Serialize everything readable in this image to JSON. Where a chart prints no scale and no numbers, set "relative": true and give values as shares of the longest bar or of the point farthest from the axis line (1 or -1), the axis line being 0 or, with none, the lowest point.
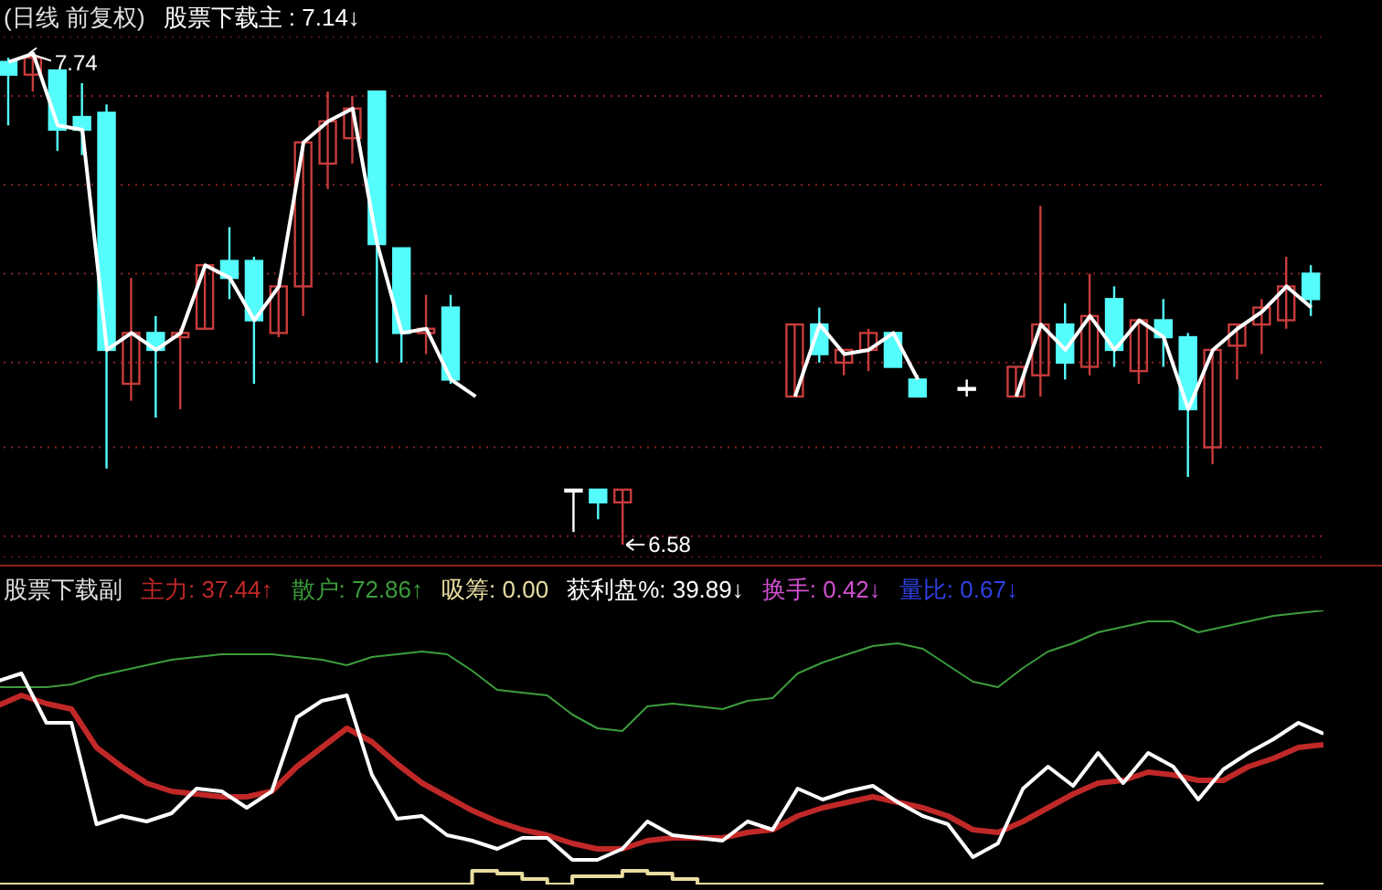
{
  "chart_data": [
    {
      "type": "candlestick",
      "title": "(日线 前复权)",
      "categories": [
        null,
        null,
        null,
        null,
        null,
        null,
        null,
        null,
        null,
        null,
        null,
        null,
        null,
        null,
        null,
        null,
        null,
        null,
        null,
        null,
        null,
        null,
        null,
        null,
        null,
        null,
        null,
        null,
        null,
        null,
        null,
        null,
        null,
        null,
        null,
        null,
        null,
        null,
        null,
        null,
        null,
        null,
        null,
        null,
        null,
        null,
        null,
        null,
        null,
        null,
        null,
        null,
        null,
        null
      ],
      "ohlc": [
        [
          7.72,
          7.73,
          7.57,
          7.69
        ],
        [
          7.69,
          7.74,
          7.65,
          7.73
        ],
        [
          7.7,
          7.7,
          7.51,
          7.56
        ],
        [
          7.59,
          7.67,
          7.5,
          7.56
        ],
        [
          7.6,
          7.62,
          6.76,
          7.04
        ],
        [
          6.96,
          7.21,
          6.92,
          7.08
        ],
        [
          7.08,
          7.12,
          6.88,
          7.04
        ],
        [
          7.07,
          7.09,
          6.9,
          7.08
        ],
        [
          7.09,
          7.24,
          7.09,
          7.24
        ],
        [
          7.25,
          7.33,
          7.16,
          7.21
        ],
        [
          7.25,
          7.26,
          6.96,
          7.11
        ],
        [
          7.08,
          7.21,
          7.07,
          7.19
        ],
        [
          7.19,
          7.53,
          7.12,
          7.53
        ],
        [
          7.48,
          7.65,
          7.42,
          7.58
        ],
        [
          7.54,
          7.64,
          7.48,
          7.61
        ],
        [
          7.65,
          7.65,
          7.01,
          7.29
        ],
        [
          7.28,
          7.28,
          7.01,
          7.08
        ],
        [
          7.08,
          7.17,
          7.03,
          7.09
        ],
        [
          7.14,
          7.17,
          6.96,
          6.97
        ],
        null,
        null,
        null,
        null,
        [
          6.71,
          6.71,
          6.61,
          6.71
        ],
        [
          6.71,
          6.71,
          6.64,
          6.68
        ],
        [
          6.68,
          6.71,
          6.58,
          6.71
        ],
        null,
        null,
        null,
        null,
        null,
        null,
        [
          6.93,
          7.1,
          6.93,
          7.1
        ],
        [
          7.1,
          7.14,
          7.01,
          7.03
        ],
        [
          7.01,
          7.04,
          6.98,
          7.04
        ],
        [
          7.04,
          7.09,
          6.99,
          7.08
        ],
        [
          7.08,
          7.08,
          7.0,
          7.0
        ],
        [
          6.97,
          6.98,
          6.93,
          6.93
        ],
        null,
        [
          6.95,
          6.97,
          6.93,
          6.95
        ],
        null,
        [
          6.93,
          7.0,
          6.93,
          7.0
        ],
        [
          6.98,
          7.38,
          6.93,
          7.1
        ],
        [
          7.1,
          7.15,
          6.97,
          7.01
        ],
        [
          7.0,
          7.22,
          6.98,
          7.12
        ],
        [
          7.16,
          7.19,
          7.0,
          7.04
        ],
        [
          6.99,
          7.11,
          6.96,
          7.11
        ],
        [
          7.11,
          7.16,
          7.0,
          7.07
        ],
        [
          7.07,
          7.08,
          6.74,
          6.9
        ],
        [
          6.81,
          7.04,
          6.77,
          7.04
        ],
        [
          7.05,
          7.1,
          6.97,
          7.1
        ],
        [
          7.1,
          7.16,
          7.03,
          7.14
        ],
        [
          7.11,
          7.26,
          7.09,
          7.19
        ],
        [
          7.22,
          7.24,
          7.12,
          7.16
        ]
      ],
      "colors": [
        "#54fcfc",
        "#c83c3c",
        "#54fcfc",
        "#54fcfc",
        "#54fcfc",
        "#c83c3c",
        "#54fcfc",
        "#c83c3c",
        "#c83c3c",
        "#54fcfc",
        "#54fcfc",
        "#c83c3c",
        "#c83c3c",
        "#c83c3c",
        "#c83c3c",
        "#54fcfc",
        "#54fcfc",
        "#c83c3c",
        "#54fcfc",
        null,
        null,
        null,
        null,
        "#ffffff",
        "#54fcfc",
        "#c83c3c",
        null,
        null,
        null,
        null,
        null,
        null,
        "#c83c3c",
        "#54fcfc",
        "#c83c3c",
        "#c83c3c",
        "#54fcfc",
        "#54fcfc",
        null,
        "#ffffff",
        null,
        "#c83c3c",
        "#c83c3c",
        "#54fcfc",
        "#c83c3c",
        "#54fcfc",
        "#c83c3c",
        "#54fcfc",
        "#54fcfc",
        "#c83c3c",
        "#c83c3c",
        "#c83c3c",
        "#c83c3c",
        "#54fcfc"
      ],
      "series": [
        {
          "type": "line",
          "name": "股票下载主 : 7.14↓",
          "color": "#ffffff",
          "values": [
            7.72,
            7.74,
            7.57,
            7.56,
            7.04,
            7.08,
            7.04,
            7.08,
            7.24,
            7.21,
            7.11,
            7.19,
            7.53,
            7.58,
            7.61,
            7.29,
            7.08,
            7.09,
            6.97,
            6.93,
            null,
            null,
            null,
            null,
            null,
            null,
            null,
            null,
            null,
            null,
            null,
            null,
            6.93,
            7.1,
            7.03,
            7.04,
            7.08,
            6.97,
            null,
            null,
            null,
            6.93,
            7.1,
            7.04,
            7.12,
            7.04,
            7.11,
            7.07,
            6.9,
            7.04,
            7.09,
            7.13,
            7.19,
            7.14
          ]
        }
      ],
      "ylim": [
        6.55,
        7.78
      ],
      "yticks": [
        {
          "value": 6.6,
          "label": null
        },
        {
          "value": 6.81,
          "label": null
        },
        {
          "value": 7.01,
          "label": null
        },
        {
          "value": 7.22,
          "label": null
        },
        {
          "value": 7.43,
          "label": null
        },
        {
          "value": 7.64,
          "label": null
        }
      ],
      "grid": "y",
      "legend": false,
      "annotations": [
        "7.74",
        "6.58"
      ]
    },
    {
      "type": "line",
      "title": "股票下载副",
      "relative": true,
      "legend": false,
      "categories": [
        null,
        null,
        null,
        null,
        null,
        null,
        null,
        null,
        null,
        null,
        null,
        null,
        null,
        null,
        null,
        null,
        null,
        null,
        null,
        null,
        null,
        null,
        null,
        null,
        null,
        null,
        null,
        null,
        null,
        null,
        null,
        null,
        null,
        null,
        null,
        null,
        null,
        null,
        null,
        null,
        null,
        null,
        null,
        null,
        null,
        null,
        null,
        null,
        null,
        null,
        null,
        null,
        null,
        null
      ],
      "series": [
        {
          "name": "主力: 37.44↑",
          "color": "#c02828",
          "values": [
            0.65,
            0.69,
            0.66,
            0.64,
            0.5,
            0.43,
            0.37,
            0.34,
            0.33,
            0.32,
            0.32,
            0.34,
            0.43,
            0.5,
            0.57,
            0.52,
            0.44,
            0.37,
            0.32,
            0.27,
            0.23,
            0.2,
            0.18,
            0.15,
            0.13,
            0.13,
            0.16,
            0.17,
            0.17,
            0.17,
            0.19,
            0.2,
            0.25,
            0.28,
            0.3,
            0.32,
            0.3,
            0.28,
            0.25,
            0.2,
            0.19,
            0.23,
            0.28,
            0.33,
            0.37,
            0.38,
            0.41,
            0.4,
            0.38,
            0.38,
            0.43,
            0.46,
            0.5,
            0.51
          ]
        },
        {
          "name": "散户: 72.86↑",
          "color": "#3c9c3c",
          "values": [
            0.72,
            0.72,
            0.72,
            0.73,
            0.76,
            0.78,
            0.8,
            0.82,
            0.83,
            0.84,
            0.84,
            0.84,
            0.83,
            0.82,
            0.8,
            0.83,
            0.84,
            0.85,
            0.84,
            0.78,
            0.71,
            0.7,
            0.69,
            0.62,
            0.57,
            0.56,
            0.65,
            0.66,
            0.65,
            0.64,
            0.67,
            0.68,
            0.77,
            0.81,
            0.84,
            0.87,
            0.88,
            0.86,
            0.8,
            0.74,
            0.72,
            0.79,
            0.85,
            0.88,
            0.92,
            0.94,
            0.96,
            0.96,
            0.92,
            0.94,
            0.96,
            0.98,
            0.99,
            1.0
          ]
        },
        {
          "type": "step",
          "name": "吸筹: 0.00",
          "color": "#e8dca0",
          "values": [
            0,
            0,
            0,
            0,
            0,
            0,
            0,
            0,
            0,
            0,
            0,
            0,
            0,
            0,
            0,
            0,
            0,
            0,
            0,
            0.05,
            0.04,
            0.02,
            0,
            0.03,
            0.03,
            0.05,
            0.04,
            0.02,
            0,
            0,
            0,
            0,
            0,
            0,
            0,
            0,
            0,
            0,
            0,
            0,
            0,
            0,
            0,
            0,
            0,
            0,
            0,
            0,
            0,
            0,
            0,
            0,
            0,
            0
          ]
        },
        {
          "name": "获利盘%: 39.89↓",
          "color": "#ffffff",
          "values": [
            0.74,
            0.77,
            0.59,
            0.59,
            0.22,
            0.25,
            0.23,
            0.26,
            0.35,
            0.34,
            0.28,
            0.34,
            0.61,
            0.67,
            0.69,
            0.4,
            0.24,
            0.25,
            0.18,
            0.16,
            0.13,
            0.17,
            0.17,
            0.09,
            0.09,
            0.13,
            0.23,
            0.18,
            0.17,
            0.16,
            0.23,
            0.2,
            0.35,
            0.31,
            0.34,
            0.36,
            0.3,
            0.25,
            0.22,
            0.1,
            0.15,
            0.35,
            0.43,
            0.36,
            0.48,
            0.37,
            0.48,
            0.43,
            0.31,
            0.42,
            0.48,
            0.53,
            0.59,
            0.55
          ]
        }
      ],
      "annotations": [
        "换手: 0.42↓",
        "量比: 0.67↓"
      ]
    }
  ]
}
